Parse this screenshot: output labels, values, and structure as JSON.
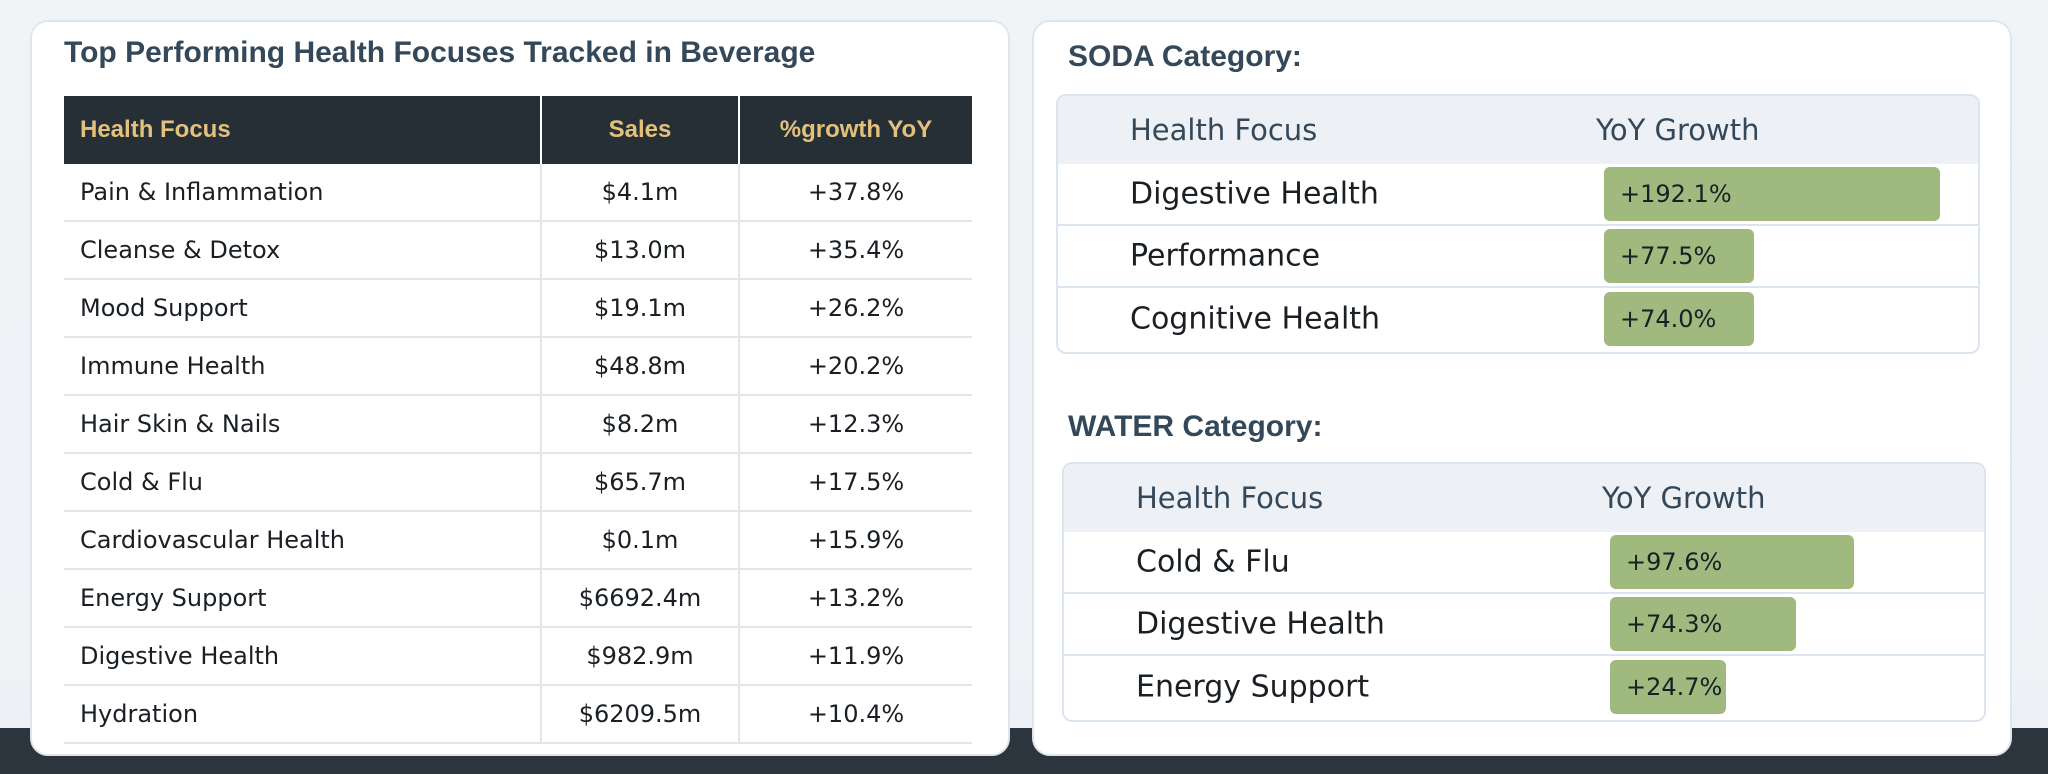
{
  "main": {
    "title": "Top Performing Health Focuses Tracked in Beverage",
    "columns": [
      "Health Focus",
      "Sales",
      "%growth YoY"
    ],
    "rows": [
      [
        "Pain & Inflammation",
        "$4.1m",
        "+37.8%"
      ],
      [
        "Cleanse & Detox",
        "$13.0m",
        "+35.4%"
      ],
      [
        "Mood Support",
        "$19.1m",
        "+26.2%"
      ],
      [
        "Immune Health",
        "$48.8m",
        "+20.2%"
      ],
      [
        "Hair Skin & Nails",
        "$8.2m",
        "+12.3%"
      ],
      [
        "Cold & Flu",
        "$65.7m",
        "+17.5%"
      ],
      [
        "Cardiovascular Health",
        "$0.1m",
        "+15.9%"
      ],
      [
        "Energy Support",
        "$6692.4m",
        "+13.2%"
      ],
      [
        "Digestive Health",
        "$982.9m",
        "+11.9%"
      ],
      [
        "Hydration",
        "$6209.5m",
        "+10.4%"
      ]
    ]
  },
  "soda": {
    "title": "SODA Category:",
    "head_focus": "Health Focus",
    "head_growth": "YoY Growth",
    "rows": [
      {
        "label": "Digestive Health",
        "growth": "+192.1%",
        "value": 192.1
      },
      {
        "label": "Performance",
        "growth": "+77.5%",
        "value": 77.5
      },
      {
        "label": "Cognitive Health",
        "growth": "+74.0%",
        "value": 74.0
      }
    ]
  },
  "water": {
    "title": "WATER Category:",
    "head_focus": "Health Focus",
    "head_growth": "YoY Growth",
    "rows": [
      {
        "label": "Cold & Flu",
        "growth": "+97.6%",
        "value": 97.6
      },
      {
        "label": "Digestive Health",
        "growth": "+74.3%",
        "value": 74.3
      },
      {
        "label": "Energy Support",
        "growth": "+24.7%",
        "value": 24.7
      }
    ]
  },
  "colors": {
    "header_bg": "#262f36",
    "header_text": "#e3c07b",
    "bar_fill": "#9fb97f",
    "title_text": "#34485a"
  }
}
